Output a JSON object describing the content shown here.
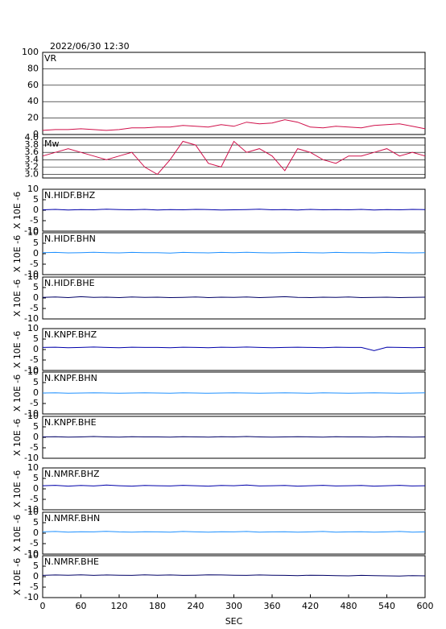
{
  "chart_data": [
    {
      "type": "line",
      "title": "2022/06/30 12:30",
      "label": "VR",
      "color": "#d0104a",
      "xlim": [
        0,
        600
      ],
      "ylim": [
        0,
        100
      ],
      "yticks": [
        0,
        20,
        40,
        60,
        80,
        100
      ],
      "grid": true,
      "x": [
        0,
        20,
        40,
        60,
        80,
        100,
        120,
        140,
        160,
        180,
        200,
        220,
        240,
        260,
        280,
        300,
        320,
        340,
        360,
        380,
        400,
        420,
        440,
        460,
        480,
        500,
        520,
        540,
        560,
        580,
        600
      ],
      "values": [
        5,
        6,
        6,
        7,
        6,
        5,
        6,
        8,
        8,
        9,
        9,
        11,
        10,
        9,
        12,
        10,
        15,
        13,
        14,
        18,
        15,
        9,
        8,
        10,
        9,
        8,
        11,
        12,
        13,
        10,
        7
      ]
    },
    {
      "type": "line",
      "label": "Mw",
      "color": "#d0104a",
      "xlim": [
        0,
        600
      ],
      "ylim": [
        2.9,
        4.0
      ],
      "yticks": [
        {
          "value": 3.0,
          "label": "3.0"
        },
        3.2,
        3.4,
        3.6,
        3.8,
        {
          "value": 4.0,
          "label": "4.0"
        }
      ],
      "grid": true,
      "x": [
        0,
        20,
        40,
        60,
        80,
        100,
        120,
        140,
        160,
        180,
        200,
        220,
        240,
        260,
        280,
        300,
        320,
        340,
        360,
        380,
        400,
        420,
        440,
        460,
        480,
        500,
        520,
        540,
        560,
        580,
        600
      ],
      "values": [
        3.5,
        3.6,
        3.7,
        3.6,
        3.5,
        3.4,
        3.5,
        3.6,
        3.2,
        3.0,
        3.4,
        3.9,
        3.8,
        3.3,
        3.2,
        3.9,
        3.6,
        3.7,
        3.5,
        3.1,
        3.7,
        3.6,
        3.4,
        3.3,
        3.5,
        3.5,
        3.6,
        3.7,
        3.5,
        3.6,
        3.5
      ]
    },
    {
      "type": "line",
      "label": "N.HIDF.BHZ",
      "y_label": "X 10E -6",
      "color": "#0000aa",
      "xlim": [
        0,
        600
      ],
      "ylim": [
        -10,
        10
      ],
      "yticks": [
        -10,
        -5,
        0,
        5,
        10
      ],
      "grid": false,
      "x": [
        0,
        20,
        40,
        60,
        80,
        100,
        120,
        140,
        160,
        180,
        200,
        220,
        240,
        260,
        280,
        300,
        320,
        340,
        360,
        380,
        400,
        420,
        440,
        460,
        480,
        500,
        520,
        540,
        560,
        580,
        600
      ],
      "values": [
        0.2,
        0.4,
        0.1,
        0.3,
        0.2,
        0.5,
        0.3,
        0.2,
        0.4,
        0.1,
        0.3,
        0.2,
        0.4,
        0.3,
        0.1,
        0.2,
        0.3,
        0.5,
        0.2,
        0.3,
        0.1,
        0.4,
        0.2,
        0.3,
        0.2,
        0.4,
        0.1,
        0.3,
        0.2,
        0.4,
        0.3
      ]
    },
    {
      "type": "line",
      "label": "N.HIDF.BHN",
      "y_label": "X 10E -6",
      "color": "#1e90ff",
      "xlim": [
        0,
        600
      ],
      "ylim": [
        -10,
        10
      ],
      "yticks": [
        -10,
        -5,
        0,
        5,
        10
      ],
      "grid": false,
      "x": [
        0,
        20,
        40,
        60,
        80,
        100,
        120,
        140,
        160,
        180,
        200,
        220,
        240,
        260,
        280,
        300,
        320,
        340,
        360,
        380,
        400,
        420,
        440,
        460,
        480,
        500,
        520,
        540,
        560,
        580,
        600
      ],
      "values": [
        0.5,
        0.6,
        0.4,
        0.5,
        0.7,
        0.5,
        0.4,
        0.6,
        0.5,
        0.5,
        0.3,
        0.6,
        0.5,
        0.4,
        0.6,
        0.5,
        0.7,
        0.5,
        0.4,
        0.5,
        0.6,
        0.5,
        0.4,
        0.6,
        0.5,
        0.5,
        0.4,
        0.6,
        0.5,
        0.4,
        0.5
      ]
    },
    {
      "type": "line",
      "label": "N.HIDF.BHE",
      "y_label": "X 10E -6",
      "color": "#000066",
      "xlim": [
        0,
        600
      ],
      "ylim": [
        -10,
        10
      ],
      "yticks": [
        -10,
        -5,
        0,
        5,
        10
      ],
      "grid": false,
      "x": [
        0,
        20,
        40,
        60,
        80,
        100,
        120,
        140,
        160,
        180,
        200,
        220,
        240,
        260,
        280,
        300,
        320,
        340,
        360,
        380,
        400,
        420,
        440,
        460,
        480,
        500,
        520,
        540,
        560,
        580,
        600
      ],
      "values": [
        0.3,
        0.5,
        0.2,
        0.6,
        0.3,
        0.4,
        0.2,
        0.5,
        0.3,
        0.4,
        0.2,
        0.3,
        0.5,
        0.2,
        0.4,
        0.3,
        0.5,
        0.2,
        0.4,
        0.6,
        0.3,
        0.2,
        0.4,
        0.3,
        0.5,
        0.2,
        0.3,
        0.4,
        0.2,
        0.3,
        0.4
      ]
    },
    {
      "type": "line",
      "label": "N.KNPF.BHZ",
      "y_label": "X 10E -6",
      "color": "#0000aa",
      "xlim": [
        0,
        600
      ],
      "ylim": [
        -10,
        10
      ],
      "yticks": [
        -10,
        -5,
        0,
        5,
        10
      ],
      "grid": false,
      "x": [
        0,
        20,
        40,
        60,
        80,
        100,
        120,
        140,
        160,
        180,
        200,
        220,
        240,
        260,
        280,
        300,
        320,
        340,
        360,
        380,
        400,
        420,
        440,
        460,
        480,
        500,
        520,
        540,
        560,
        580,
        600
      ],
      "values": [
        1.0,
        1.1,
        0.9,
        1.0,
        1.2,
        1.0,
        0.9,
        1.1,
        1.0,
        1.0,
        0.9,
        1.1,
        1.0,
        0.9,
        1.1,
        1.0,
        1.2,
        1.0,
        0.9,
        1.0,
        1.1,
        1.0,
        0.9,
        1.1,
        1.0,
        1.0,
        -0.5,
        1.1,
        1.0,
        0.9,
        1.0
      ]
    },
    {
      "type": "line",
      "label": "N.KNPF.BHN",
      "y_label": "X 10E -6",
      "color": "#1e90ff",
      "xlim": [
        0,
        600
      ],
      "ylim": [
        -10,
        10
      ],
      "yticks": [
        -10,
        -5,
        0,
        5,
        10
      ],
      "grid": false,
      "x": [
        0,
        20,
        40,
        60,
        80,
        100,
        120,
        140,
        160,
        180,
        200,
        220,
        240,
        260,
        280,
        300,
        320,
        340,
        360,
        380,
        400,
        420,
        440,
        460,
        480,
        500,
        520,
        540,
        560,
        580,
        600
      ],
      "values": [
        0.0,
        0.1,
        -0.1,
        0.0,
        0.1,
        0.0,
        -0.1,
        0.0,
        0.1,
        0.0,
        -0.1,
        0.1,
        0.0,
        -0.1,
        0.0,
        0.1,
        0.0,
        -0.1,
        0.0,
        0.1,
        0.0,
        -0.1,
        0.1,
        0.0,
        -0.1,
        0.0,
        0.1,
        0.0,
        -0.1,
        0.0,
        0.1
      ]
    },
    {
      "type": "line",
      "label": "N.KNPF.BHE",
      "y_label": "X 10E -6",
      "color": "#000066",
      "xlim": [
        0,
        600
      ],
      "ylim": [
        -10,
        10
      ],
      "yticks": [
        -10,
        -5,
        0,
        5,
        10
      ],
      "grid": false,
      "x": [
        0,
        20,
        40,
        60,
        80,
        100,
        120,
        140,
        160,
        180,
        200,
        220,
        240,
        260,
        280,
        300,
        320,
        340,
        360,
        380,
        400,
        420,
        440,
        460,
        480,
        500,
        520,
        540,
        560,
        580,
        600
      ],
      "values": [
        0.2,
        0.3,
        0.1,
        0.2,
        0.4,
        0.2,
        0.1,
        0.3,
        0.2,
        0.2,
        0.1,
        0.3,
        0.2,
        0.1,
        0.3,
        0.2,
        0.4,
        0.2,
        0.1,
        0.2,
        0.3,
        0.2,
        0.1,
        0.3,
        0.2,
        0.2,
        0.1,
        0.3,
        0.2,
        0.1,
        0.2
      ]
    },
    {
      "type": "line",
      "label": "N.NMRF.BHZ",
      "y_label": "X 10E -6",
      "color": "#0000aa",
      "xlim": [
        0,
        600
      ],
      "ylim": [
        -10,
        10
      ],
      "yticks": [
        -10,
        -5,
        0,
        5,
        10
      ],
      "grid": false,
      "x": [
        0,
        20,
        40,
        60,
        80,
        100,
        120,
        140,
        160,
        180,
        200,
        220,
        240,
        260,
        280,
        300,
        320,
        340,
        360,
        380,
        400,
        420,
        440,
        460,
        480,
        500,
        520,
        540,
        560,
        580,
        600
      ],
      "values": [
        1.5,
        1.7,
        1.3,
        1.6,
        1.4,
        1.8,
        1.5,
        1.3,
        1.6,
        1.5,
        1.4,
        1.7,
        1.5,
        1.3,
        1.6,
        1.5,
        1.8,
        1.4,
        1.5,
        1.6,
        1.3,
        1.5,
        1.7,
        1.4,
        1.5,
        1.6,
        1.3,
        1.5,
        1.7,
        1.4,
        1.5
      ]
    },
    {
      "type": "line",
      "label": "N.NMRF.BHN",
      "y_label": "X 10E -6",
      "color": "#1e90ff",
      "xlim": [
        0,
        600
      ],
      "ylim": [
        -10,
        10
      ],
      "yticks": [
        -10,
        -5,
        0,
        5,
        10
      ],
      "grid": false,
      "x": [
        0,
        20,
        40,
        60,
        80,
        100,
        120,
        140,
        160,
        180,
        200,
        220,
        240,
        260,
        280,
        300,
        320,
        340,
        360,
        380,
        400,
        420,
        440,
        460,
        480,
        500,
        520,
        540,
        560,
        580,
        600
      ],
      "values": [
        0.6,
        0.8,
        0.5,
        0.7,
        0.6,
        0.9,
        0.6,
        0.5,
        0.7,
        0.6,
        0.5,
        0.8,
        0.6,
        0.5,
        0.7,
        0.6,
        0.8,
        0.5,
        0.6,
        0.7,
        0.5,
        0.6,
        0.8,
        0.5,
        0.6,
        0.7,
        0.5,
        0.6,
        0.8,
        0.5,
        0.6
      ]
    },
    {
      "type": "line",
      "label": "N.NMRF.BHE",
      "y_label": "X 10E -6",
      "color": "#000066",
      "xlim": [
        0,
        600
      ],
      "ylim": [
        -10,
        10
      ],
      "yticks": [
        -10,
        -5,
        0,
        5,
        10
      ],
      "grid": false,
      "x": [
        0,
        20,
        40,
        60,
        80,
        100,
        120,
        140,
        160,
        180,
        200,
        220,
        240,
        260,
        280,
        300,
        320,
        340,
        360,
        380,
        400,
        420,
        440,
        460,
        480,
        500,
        520,
        540,
        560,
        580,
        600
      ],
      "values": [
        0.6,
        0.8,
        0.7,
        0.9,
        0.6,
        0.8,
        0.7,
        0.6,
        0.9,
        0.7,
        0.8,
        0.6,
        0.7,
        0.9,
        0.8,
        0.7,
        0.6,
        0.8,
        0.7,
        0.6,
        0.5,
        0.7,
        0.6,
        0.5,
        0.4,
        0.6,
        0.5,
        0.4,
        0.3,
        0.5,
        0.4
      ],
      "xticks": [
        0,
        60,
        120,
        180,
        240,
        300,
        360,
        420,
        480,
        540,
        600
      ],
      "x_label": "SEC"
    }
  ]
}
